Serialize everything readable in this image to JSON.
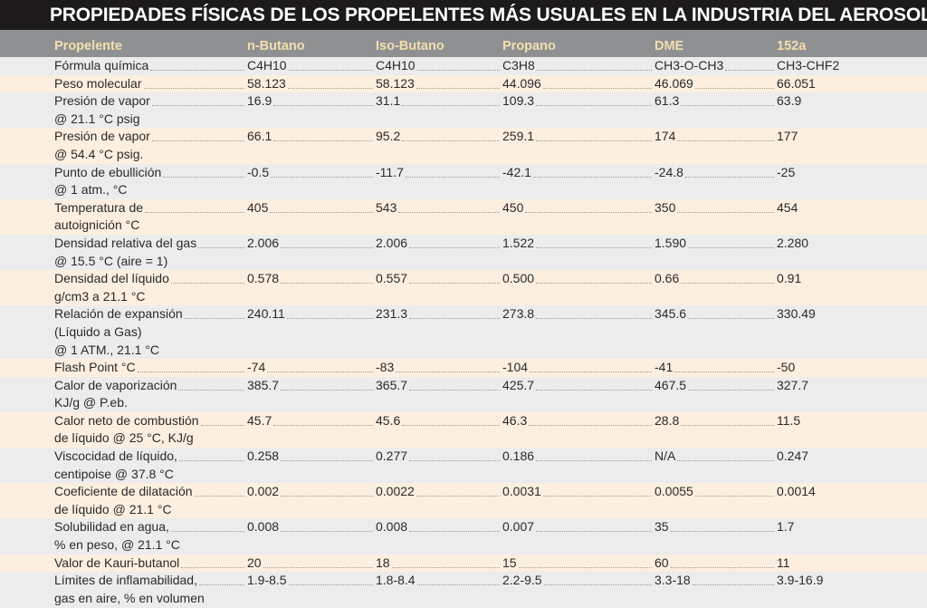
{
  "title": "PROPIEDADES FÍSICAS DE LOS PROPELENTES MÁS USUALES EN LA INDUSTRIA DEL AEROSOL",
  "columns": [
    "Propelente",
    "n-Butano",
    "Iso-Butano",
    "Propano",
    "DME",
    "152a"
  ],
  "colors": {
    "title_bg": "#1c1a1a",
    "header_bg": "#8f9092",
    "header_text": "#f3dfae",
    "row_gray": "#ececec",
    "row_peach": "#fdefdf"
  },
  "rows": [
    {
      "label": [
        "Fórmula química"
      ],
      "values": [
        "C4H10",
        "C4H10",
        "C3H8",
        "CH3-O-CH3",
        "CH3-CHF2"
      ]
    },
    {
      "label": [
        "Peso molecular"
      ],
      "values": [
        "58.123",
        "58.123",
        "44.096",
        "46.069",
        "66.051"
      ]
    },
    {
      "label": [
        "Presión de vapor",
        "@ 21.1 °C psig"
      ],
      "values": [
        "16.9",
        "31.1",
        "109.3",
        "61.3",
        "63.9"
      ]
    },
    {
      "label": [
        "Presión de vapor",
        "@ 54.4 °C psig."
      ],
      "values": [
        "66.1",
        "95.2",
        "259.1",
        "174",
        "177"
      ]
    },
    {
      "label": [
        "Punto de ebullición",
        "@ 1 atm., °C"
      ],
      "values": [
        "-0.5",
        "-11.7",
        "-42.1",
        "-24.8",
        "-25"
      ]
    },
    {
      "label": [
        "Temperatura de",
        "autoignición °C"
      ],
      "values": [
        "405",
        "543",
        "450",
        "350",
        "454"
      ]
    },
    {
      "label": [
        "Densidad relativa del gas",
        "@ 15.5 °C (aire = 1)"
      ],
      "values": [
        "2.006",
        "2.006",
        "1.522",
        "1.590",
        "2.280"
      ]
    },
    {
      "label": [
        "Densidad del líquido",
        "g/cm3 a 21.1 °C"
      ],
      "values": [
        "0.578",
        "0.557",
        "0.500",
        "0.66",
        "0.91"
      ]
    },
    {
      "label": [
        "Relación de expansión",
        "(Líquido a Gas)",
        "@ 1 ATM., 21.1 °C"
      ],
      "values": [
        "240.11",
        "231.3",
        "273.8",
        "345.6",
        "330.49"
      ]
    },
    {
      "label": [
        "Flash Point °C"
      ],
      "values": [
        "-74",
        "-83",
        "-104",
        "-41",
        "-50"
      ]
    },
    {
      "label": [
        "Calor de vaporización",
        "KJ/g @ P.eb."
      ],
      "values": [
        "385.7",
        "365.7",
        "425.7",
        "467.5",
        "327.7"
      ]
    },
    {
      "label": [
        "Calor neto de combustión",
        "de líquido @ 25 °C, KJ/g"
      ],
      "values": [
        "45.7",
        "45.6",
        "46.3",
        "28.8",
        "11.5"
      ]
    },
    {
      "label": [
        "Viscocidad de líquido,",
        "centipoise @ 37.8 °C"
      ],
      "values": [
        "0.258",
        "0.277",
        "0.186",
        "N/A",
        "0.247"
      ]
    },
    {
      "label": [
        "Coeficiente de dilatación",
        "de líquido @ 21.1 °C"
      ],
      "values": [
        "0.002",
        "0.0022",
        "0.0031",
        "0.0055",
        "0.0014"
      ]
    },
    {
      "label": [
        "Solubilidad en agua,",
        "% en peso, @ 21.1 °C"
      ],
      "values": [
        "0.008",
        "0.008",
        "0.007",
        "35",
        "1.7"
      ]
    },
    {
      "label": [
        "Valor de Kauri-butanol"
      ],
      "values": [
        "20",
        "18",
        "15",
        "60",
        "11"
      ]
    },
    {
      "label": [
        "Límites de inflamabilidad,",
        "gas en aire, % en volumen"
      ],
      "values": [
        "1.9-8.5",
        "1.8-8.4",
        "2.2-9.5",
        "3.3-18",
        "3.9-16.9"
      ]
    }
  ]
}
